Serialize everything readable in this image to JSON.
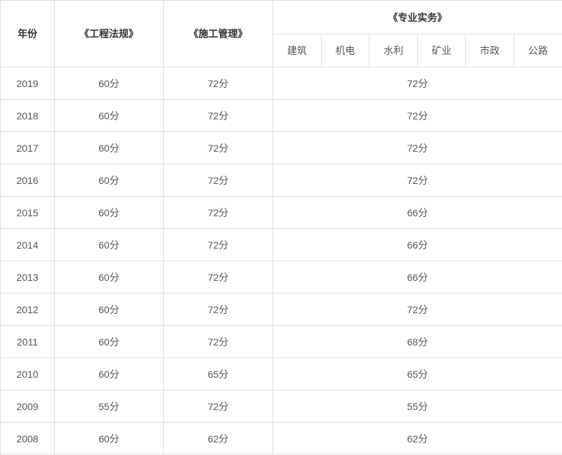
{
  "table": {
    "headers": {
      "year": "年份",
      "law": "《工程法规》",
      "management": "《施工管理》",
      "practice": "《专业实务》",
      "practice_subcolumns": [
        "建筑",
        "机电",
        "水利",
        "矿业",
        "市政",
        "公路"
      ]
    },
    "rows": [
      {
        "year": "2019",
        "law": "60分",
        "management": "72分",
        "practice": "72分"
      },
      {
        "year": "2018",
        "law": "60分",
        "management": "72分",
        "practice": "72分"
      },
      {
        "year": "2017",
        "law": "60分",
        "management": "72分",
        "practice": "72分"
      },
      {
        "year": "2016",
        "law": "60分",
        "management": "72分",
        "practice": "72分"
      },
      {
        "year": "2015",
        "law": "60分",
        "management": "72分",
        "practice": "66分"
      },
      {
        "year": "2014",
        "law": "60分",
        "management": "72分",
        "practice": "66分"
      },
      {
        "year": "2013",
        "law": "60分",
        "management": "72分",
        "practice": "66分"
      },
      {
        "year": "2012",
        "law": "60分",
        "management": "72分",
        "practice": "72分"
      },
      {
        "year": "2011",
        "law": "60分",
        "management": "72分",
        "practice": "68分"
      },
      {
        "year": "2010",
        "law": "60分",
        "management": "65分",
        "practice": "65分"
      },
      {
        "year": "2009",
        "law": "55分",
        "management": "72分",
        "practice": "55分"
      },
      {
        "year": "2008",
        "law": "60分",
        "management": "62分",
        "practice": "62分"
      }
    ],
    "colors": {
      "border": "#e0e0e0",
      "header_text": "#333333",
      "cell_text": "#555555",
      "background": "#ffffff"
    }
  }
}
